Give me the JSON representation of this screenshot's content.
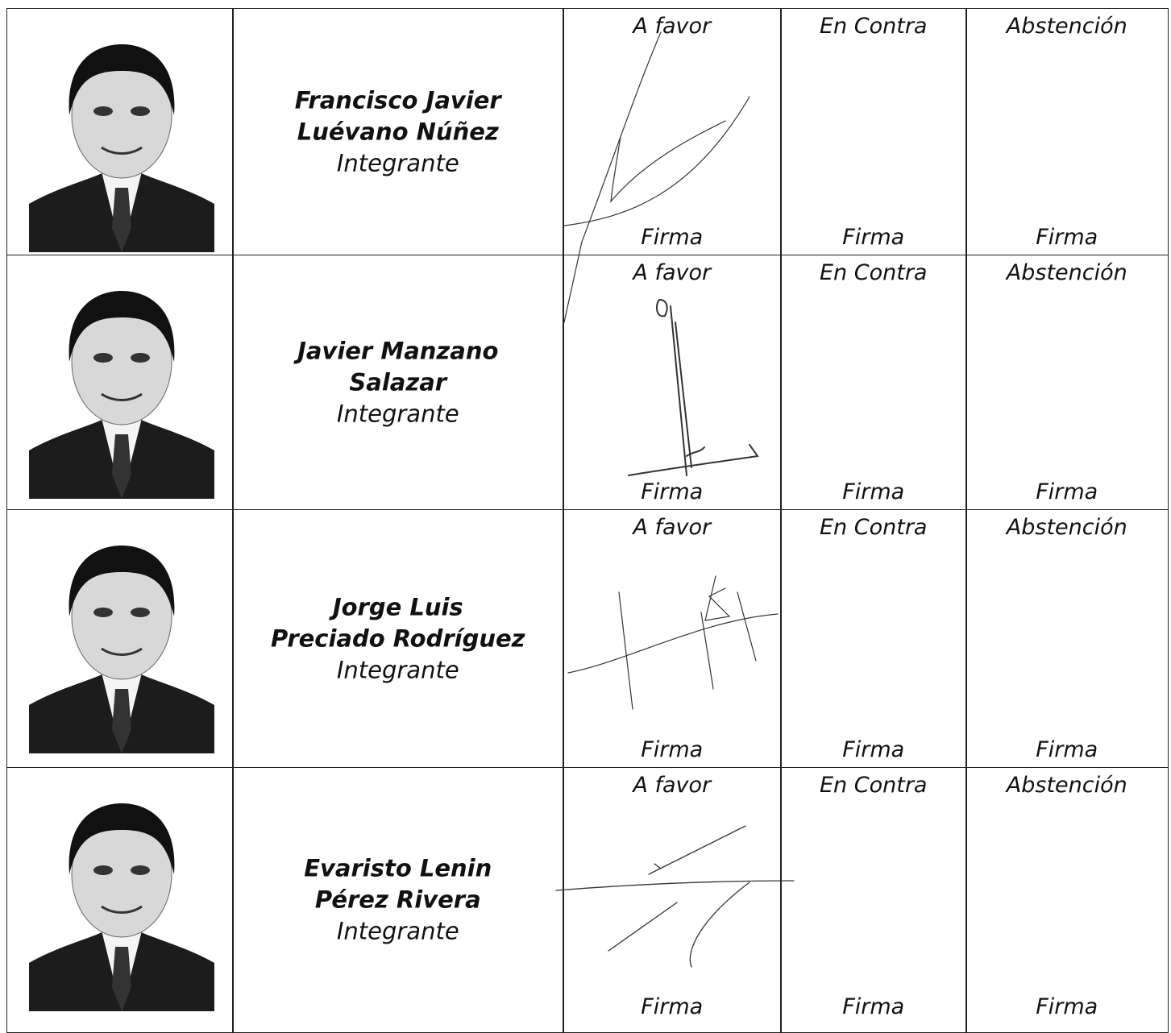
{
  "rows": [
    {
      "name_lines": [
        "Francisco Javier",
        "Luévano Núñez"
      ],
      "role": "Integrante",
      "votes": [
        {
          "header": "A favor",
          "footer": "Firma"
        },
        {
          "header": "En Contra",
          "footer": "Firma"
        },
        {
          "header": "Abstención",
          "footer": "Firma"
        }
      ]
    },
    {
      "name_lines": [
        "Javier Manzano",
        "Salazar"
      ],
      "role": "Integrante",
      "votes": [
        {
          "header": "A favor",
          "footer": "Firma"
        },
        {
          "header": "En Contra",
          "footer": "Firma"
        },
        {
          "header": "Abstención",
          "footer": "Firma"
        }
      ]
    },
    {
      "name_lines": [
        "Jorge Luis",
        "Preciado Rodríguez"
      ],
      "role": "Integrante",
      "votes": [
        {
          "header": "A favor",
          "footer": "Firma"
        },
        {
          "header": "En Contra",
          "footer": "Firma"
        },
        {
          "header": "Abstención",
          "footer": "Firma"
        }
      ]
    },
    {
      "name_lines": [
        "Evaristo Lenin",
        "Pérez Rivera"
      ],
      "role": "Integrante",
      "votes": [
        {
          "header": "A favor",
          "footer": "Firma"
        },
        {
          "header": "En Contra",
          "footer": "Firma"
        },
        {
          "header": "Abstención",
          "footer": "Firma"
        }
      ]
    }
  ]
}
